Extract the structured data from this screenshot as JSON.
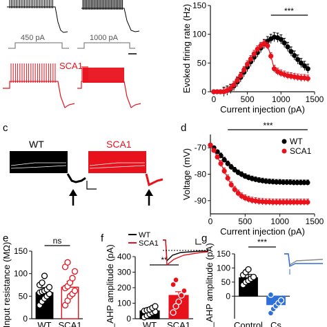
{
  "panel_letters": {
    "c": "c",
    "d": "d",
    "e": "e",
    "f": "f",
    "g": "g"
  },
  "colors": {
    "wt": "#000000",
    "sca1": "#e8121c",
    "blue": "#2f6fd8",
    "gray": "#8a8a8a",
    "axis": "#111111"
  },
  "trace_labels": {
    "step1": "450 pA",
    "step2": "1000 pA",
    "sca1_top": "SCA1",
    "c_wt": "WT",
    "c_sca1": "SCA1"
  },
  "chart_data": [
    {
      "id": "b",
      "type": "line",
      "ylabel": "Evoked firing rate (Hz)",
      "xlabel": "Current injection (pA)",
      "xlim": [
        -50,
        1500
      ],
      "ylim": [
        0,
        150
      ],
      "x_ticks": [
        "0",
        "500",
        "1000",
        "1500"
      ],
      "y_ticks": [
        "0",
        "50",
        "100",
        "150"
      ],
      "significance": "***",
      "series": [
        {
          "color": "black",
          "error": 8,
          "x": [
            0,
            50,
            100,
            150,
            200,
            250,
            300,
            350,
            400,
            450,
            500,
            550,
            600,
            650,
            700,
            750,
            800,
            850,
            900,
            950,
            1000,
            1050,
            1100,
            1150,
            1200,
            1250,
            1300,
            1350,
            1400
          ],
          "y": [
            0,
            0,
            0,
            0,
            2,
            5,
            10,
            17,
            25,
            34,
            43,
            52,
            60,
            68,
            76,
            83,
            88,
            92,
            95,
            94,
            91,
            85,
            78,
            70,
            63,
            56,
            50,
            45,
            40
          ]
        },
        {
          "color": "red",
          "error": 6,
          "x": [
            0,
            50,
            100,
            150,
            200,
            250,
            300,
            350,
            400,
            450,
            500,
            550,
            600,
            650,
            700,
            750,
            800,
            850,
            900,
            950,
            1000,
            1050,
            1100,
            1150,
            1200,
            1250,
            1300,
            1350,
            1400
          ],
          "y": [
            0,
            0,
            0,
            0,
            2,
            6,
            12,
            20,
            28,
            38,
            48,
            57,
            66,
            74,
            80,
            84,
            80,
            62,
            40,
            35,
            32,
            30,
            28,
            27,
            26,
            25,
            24,
            24,
            23
          ]
        }
      ]
    },
    {
      "id": "d",
      "type": "line",
      "ylabel": "Voltage (mV)",
      "xlabel": "Current injection (pA)",
      "xlim": [
        0,
        1500
      ],
      "ylim": [
        -95,
        -65
      ],
      "x_ticks": [
        "0",
        "500",
        "1000",
        "1500"
      ],
      "y_ticks": [
        "-90",
        "-80",
        "-70"
      ],
      "significance": "***",
      "legend": [
        "WT",
        "SCA1"
      ],
      "series": [
        {
          "name": "WT",
          "color": "black",
          "error": 1.0,
          "x": [
            0,
            50,
            100,
            150,
            200,
            250,
            300,
            350,
            400,
            450,
            500,
            550,
            600,
            650,
            700,
            750,
            800,
            850,
            900,
            950,
            1000,
            1050,
            1100,
            1150,
            1200,
            1250,
            1300,
            1350,
            1400
          ],
          "y": [
            -69.0,
            -70.0,
            -71.5,
            -73.0,
            -74.6,
            -76.0,
            -77.3,
            -78.4,
            -79.4,
            -80.1,
            -80.8,
            -81.3,
            -81.7,
            -82.0,
            -82.3,
            -82.5,
            -82.7,
            -82.8,
            -82.9,
            -83.0,
            -83.0,
            -83.1,
            -83.1,
            -83.1,
            -83.2,
            -83.2,
            -83.2,
            -83.2,
            -83.2
          ]
        },
        {
          "name": "SCA1",
          "color": "red",
          "error": 1.2,
          "x": [
            0,
            50,
            100,
            150,
            200,
            250,
            300,
            350,
            400,
            450,
            500,
            550,
            600,
            650,
            700,
            750,
            800,
            850,
            900,
            950,
            1000,
            1050,
            1100,
            1150,
            1200,
            1250,
            1300,
            1350,
            1400
          ],
          "y": [
            -69.0,
            -71.0,
            -73.5,
            -76.0,
            -78.8,
            -81.5,
            -84.0,
            -85.8,
            -87.2,
            -88.3,
            -89.0,
            -89.5,
            -89.9,
            -90.1,
            -90.3,
            -90.4,
            -90.5,
            -90.5,
            -90.6,
            -90.6,
            -90.6,
            -90.6,
            -90.6,
            -90.6,
            -90.6,
            -90.6,
            -90.6,
            -90.6,
            -90.6
          ]
        }
      ]
    },
    {
      "id": "e",
      "type": "bar",
      "ylabel": "Input resistance (MΩ)",
      "categories": [
        "WT",
        "SCA1"
      ],
      "values": [
        58,
        70
      ],
      "ylim": [
        0,
        150
      ],
      "y_ticks": [
        "0",
        "50",
        "100",
        "150"
      ],
      "significance": "ns",
      "points": [
        [
          30,
          38,
          45,
          50,
          55,
          58,
          60,
          62,
          65,
          70,
          75,
          80,
          95
        ],
        [
          30,
          40,
          50,
          55,
          62,
          68,
          72,
          80,
          90,
          105,
          115,
          125
        ]
      ]
    },
    {
      "id": "f",
      "type": "bar",
      "ylabel": "I_AHP amplitude (pA)",
      "categories": [
        "WT",
        "SCA1"
      ],
      "values": [
        50,
        150
      ],
      "ylim": [
        0,
        400
      ],
      "y_ticks": [
        "0",
        "100",
        "200",
        "300",
        "400"
      ],
      "significance": "**",
      "legend": [
        "WT",
        "SCA1"
      ],
      "points": [
        [
          10,
          20,
          30,
          40,
          45,
          50,
          55,
          60,
          70,
          80
        ],
        [
          40,
          80,
          110,
          150,
          180,
          220,
          250
        ]
      ]
    },
    {
      "id": "g",
      "type": "bar",
      "ylabel": "I_AHP amplitude (pA)",
      "categories": [
        "Control",
        "Cs"
      ],
      "values": [
        65,
        -30
      ],
      "ylim": [
        -80,
        150
      ],
      "y_ticks": [
        "0",
        "50",
        "100",
        "150"
      ],
      "significance": "***",
      "points": [
        [
          40,
          50,
          55,
          62,
          68,
          75,
          85,
          95
        ],
        [
          -60,
          -45,
          -35,
          -25,
          -15,
          5
        ]
      ]
    }
  ]
}
